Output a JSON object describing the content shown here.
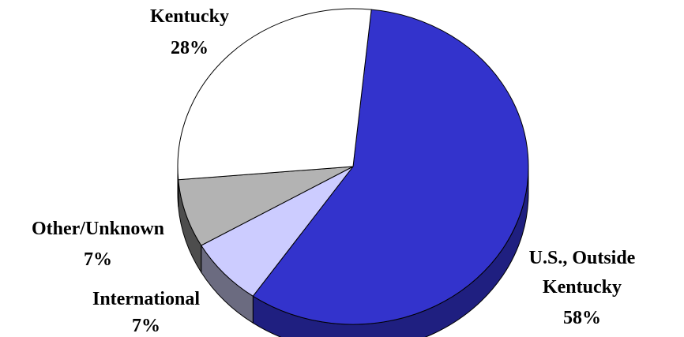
{
  "chart_data": {
    "type": "pie",
    "style": "3d",
    "title": "",
    "slices": [
      {
        "label_lines": [
          "U.S., Outside",
          "Kentucky"
        ],
        "pct_label": "58%",
        "value": 58,
        "color": "#3333cc",
        "side_color": "#1f1f80"
      },
      {
        "label_lines": [
          "International"
        ],
        "pct_label": "7%",
        "value": 7,
        "color": "#ccccff",
        "side_color": "#6b6b80"
      },
      {
        "label_lines": [
          "Other/Unknown"
        ],
        "pct_label": "7%",
        "value": 7,
        "color": "#b3b3b3",
        "side_color": "#4d4d4d"
      },
      {
        "label_lines": [
          "Kentucky"
        ],
        "pct_label": "28%",
        "value": 28,
        "color": "#ffffff",
        "side_color": "#e0e0e0"
      }
    ]
  }
}
